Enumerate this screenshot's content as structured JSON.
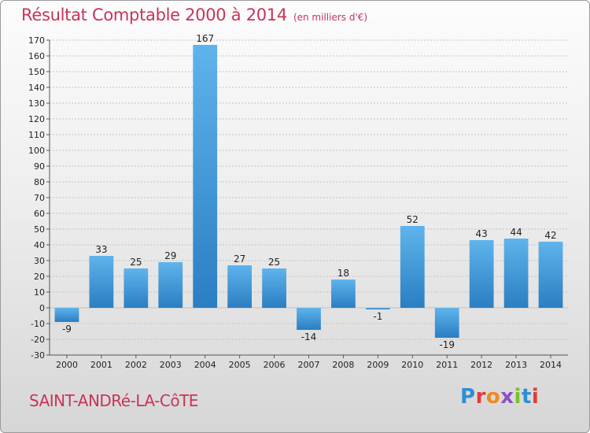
{
  "header": {
    "title": "Résultat Comptable 2000 à 2014",
    "unit": "(en milliers d'€)"
  },
  "footer": {
    "commune": "SAINT-ANDRé-LA-CôTE",
    "logo_text": "Proxiti",
    "logo_letters": [
      "P",
      "r",
      "o",
      "x",
      "i",
      "t",
      "i"
    ]
  },
  "colors": {
    "title": "#c8345a",
    "bar_light": "#5fb4ec",
    "bar_dark": "#2a7ec2"
  },
  "chart_data": {
    "type": "bar",
    "title": "Résultat Comptable 2000 à 2014",
    "xlabel": "",
    "ylabel": "",
    "categories": [
      "2000",
      "2001",
      "2002",
      "2003",
      "2004",
      "2005",
      "2006",
      "2007",
      "2008",
      "2009",
      "2010",
      "2011",
      "2012",
      "2013",
      "2014"
    ],
    "values": [
      -9,
      33,
      25,
      29,
      167,
      27,
      25,
      -14,
      18,
      -1,
      52,
      -19,
      43,
      44,
      42
    ],
    "data_labels": [
      "-9",
      "33",
      "25",
      "29",
      "167",
      "27",
      "25",
      "-14",
      "18",
      "-1",
      "52",
      "-19",
      "43",
      "44",
      "42"
    ],
    "ylim": [
      -30,
      170
    ],
    "yticks": [
      -30,
      -20,
      -10,
      0,
      10,
      20,
      30,
      40,
      50,
      60,
      70,
      80,
      90,
      100,
      110,
      120,
      130,
      140,
      150,
      160,
      170
    ],
    "ytick_labels": [
      "-30",
      "-20",
      "-10",
      "0",
      "10",
      "20",
      "30",
      "40",
      "50",
      "60",
      "70",
      "80",
      "90",
      "100",
      "110",
      "120",
      "130",
      "140",
      "150",
      "160",
      "170"
    ],
    "grid": true,
    "legend": "none"
  }
}
